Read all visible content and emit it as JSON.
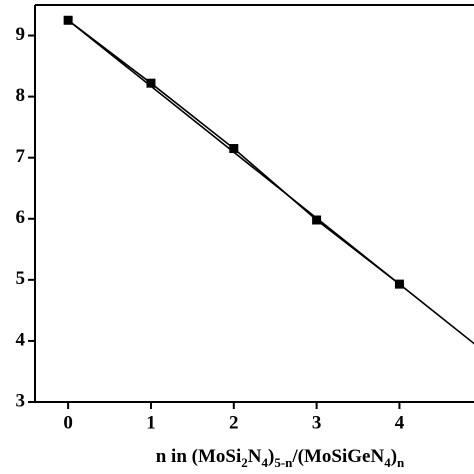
{
  "chart_data": {
    "type": "line",
    "x": [
      0,
      1,
      2,
      3,
      4
    ],
    "series": [
      {
        "color": "#000000",
        "marker": "square",
        "values": [
          9.25,
          8.22,
          7.15,
          5.98,
          4.93
        ]
      }
    ],
    "fit_line": {
      "x": [
        0,
        5
      ],
      "values": [
        9.25,
        3.85
      ],
      "color": "#000000"
    },
    "xlim": [
      -0.4,
      4.9
    ],
    "ylim": [
      3,
      9.5
    ],
    "xticks": [
      0,
      1,
      2,
      3,
      4
    ],
    "yticks": [
      3,
      4,
      5,
      6,
      7,
      8,
      9
    ],
    "x_label": [
      "n in (MoSi",
      "2",
      "N",
      "4",
      ")",
      "5-n",
      "/(MoSiGeN",
      "4",
      ")",
      "n"
    ],
    "x_label_sub": [
      false,
      true,
      false,
      true,
      false,
      true,
      false,
      true,
      false,
      true
    ],
    "grid": false
  }
}
